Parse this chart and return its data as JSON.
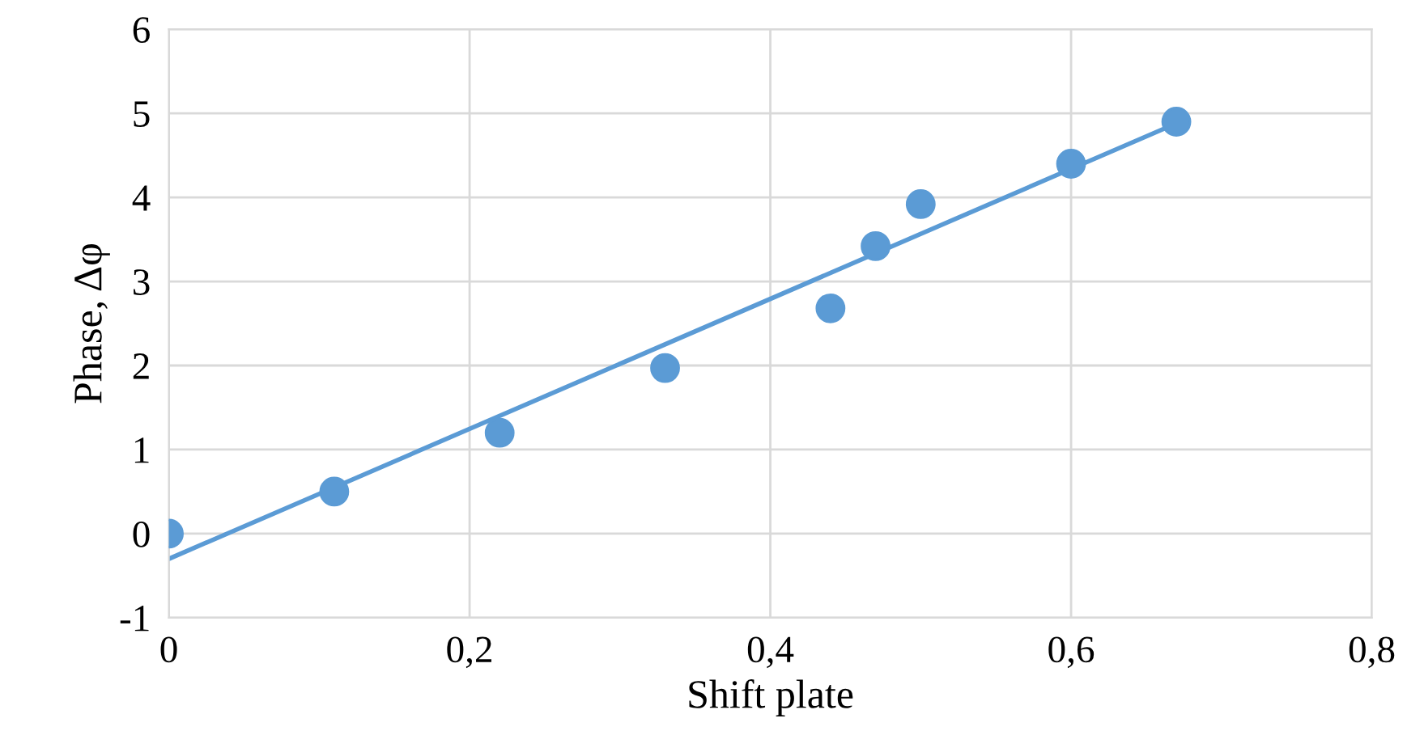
{
  "chart_data": {
    "type": "scatter",
    "xlabel": "Shift plate",
    "ylabel": "Phase, Δφ",
    "xlim": [
      0,
      0.8
    ],
    "xticks": [
      {
        "value": 0,
        "label": "0"
      },
      {
        "value": 0.2,
        "label": "0,2"
      },
      {
        "value": 0.4,
        "label": "0,4"
      },
      {
        "value": 0.6,
        "label": "0,6"
      },
      {
        "value": 0.8,
        "label": "0,8"
      }
    ],
    "ylim": [
      -1,
      6
    ],
    "yticks": [
      -1,
      0,
      1,
      2,
      3,
      4,
      5,
      6
    ],
    "grid": true,
    "series": [
      {
        "marker": "circle",
        "color": "#5b9bd5",
        "x": [
          0,
          0.11,
          0.22,
          0.33,
          0.44,
          0.47,
          0.5,
          0.6,
          0.67
        ],
        "values": [
          0,
          0.5,
          1.2,
          1.97,
          2.68,
          3.42,
          3.92,
          4.4,
          4.9
        ]
      },
      {
        "type": "line",
        "marker": "none",
        "color": "#5b9bd5",
        "line_style": "solid",
        "x": [
          0,
          0.67
        ],
        "values": [
          -0.3,
          4.88
        ]
      }
    ]
  }
}
